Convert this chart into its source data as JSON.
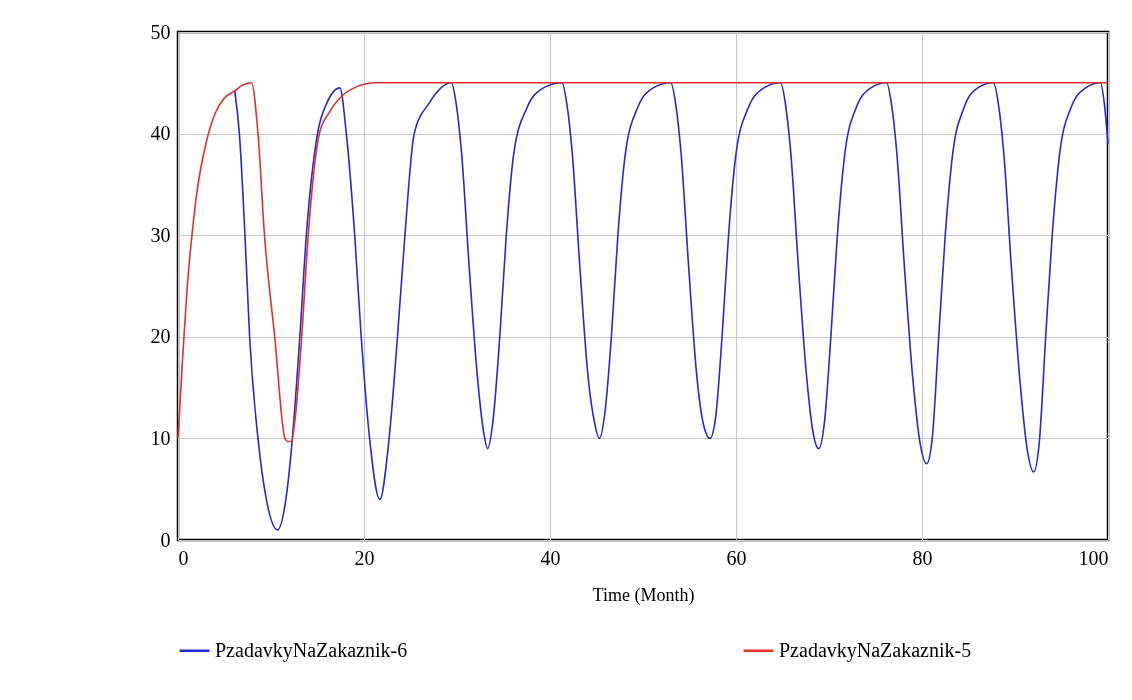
{
  "chart_data": {
    "type": "line",
    "xlabel": "Time (Month)",
    "xlim": [
      0,
      100
    ],
    "xticks": [
      0,
      20,
      40,
      60,
      80,
      100
    ],
    "ylim": [
      0,
      50
    ],
    "yticks": [
      0,
      10,
      20,
      30,
      40,
      50
    ],
    "grid": true,
    "legend": "bottom",
    "marker": "none",
    "line_style": "solid",
    "series": [
      {
        "name": "PzadavkyNaZakaznik-6",
        "color": "#2828d0",
        "x": [
          6.1,
          6.6,
          7.2,
          7.7,
          8.6,
          9.5,
          10.7,
          11.6,
          12.3,
          13.1,
          13.8,
          15,
          16,
          17.4,
          18.1,
          19,
          19.7,
          20.6,
          21.7,
          22.7,
          23.6,
          24.4,
          25.4,
          27,
          29.4,
          29.9,
          30.5,
          31.3,
          32.2,
          32.8,
          33.3,
          33.9,
          34.6,
          35.3,
          36.1,
          37.5,
          39.3,
          41.3,
          41.8,
          42.4,
          43.2,
          44.1,
          44.8,
          45.3,
          45.9,
          46.6,
          47.3,
          48.1,
          49.4,
          51.1,
          53,
          53.5,
          54.1,
          54.9,
          55.8,
          56.6,
          57.2,
          57.8,
          58.5,
          59.2,
          60,
          61.3,
          63,
          64.8,
          65.3,
          65.9,
          66.7,
          67.6,
          68.3,
          68.9,
          69.5,
          70.2,
          70.9,
          71.7,
          72.9,
          74.5,
          76.2,
          76.7,
          77.3,
          78.1,
          79,
          79.8,
          80.5,
          81.1,
          81.8,
          82.5,
          83.3,
          84.5,
          86,
          87.7,
          88.2,
          88.8,
          89.6,
          90.5,
          91.3,
          92,
          92.6,
          93.3,
          94,
          94.8,
          96,
          97.6,
          99.2,
          99.6,
          100
        ],
        "values": [
          44.2,
          40,
          30,
          20,
          10,
          4,
          1,
          4,
          10,
          20,
          30,
          40,
          43,
          44.5,
          40,
          30,
          20,
          10,
          4,
          10,
          20,
          30,
          40,
          43,
          45,
          43,
          38,
          27,
          16,
          11,
          9,
          12,
          20,
          30,
          38,
          42.5,
          44.5,
          45,
          43,
          38,
          27,
          16,
          11.5,
          10,
          12.5,
          20,
          30,
          38,
          42.5,
          44.5,
          45,
          43,
          38,
          27,
          16,
          11,
          10,
          12,
          20,
          30,
          38,
          42.5,
          44.5,
          45,
          43,
          38,
          27,
          16,
          10.5,
          9,
          11.5,
          20,
          30,
          38,
          42.5,
          44.5,
          45,
          43,
          38,
          27,
          16,
          9.5,
          7.5,
          10,
          20,
          30,
          38,
          42.5,
          44.5,
          45,
          43,
          38,
          27,
          16,
          9,
          6.7,
          9.5,
          20,
          30,
          38,
          42.5,
          44.5,
          45,
          43,
          39
        ]
      },
      {
        "name": "PzadavkyNaZakaznik-5",
        "color": "#e03030",
        "x": [
          0,
          0.5,
          1,
          1.5,
          2,
          3,
          4,
          5,
          6.1,
          7,
          7.9,
          8.6,
          9.3,
          10.4,
          11.5,
          11.8,
          12.2,
          12.6,
          13.3,
          14,
          15.2,
          16.2,
          17.4,
          19.2,
          21.3,
          30,
          50,
          75,
          100
        ],
        "values": [
          10,
          18,
          25,
          30,
          34,
          39,
          42,
          43.5,
          44.2,
          44.8,
          45,
          40,
          30,
          20,
          10,
          9.7,
          9.7,
          12,
          20,
          30,
          40,
          42,
          43.5,
          44.6,
          45,
          45,
          45,
          45,
          45
        ]
      }
    ]
  }
}
